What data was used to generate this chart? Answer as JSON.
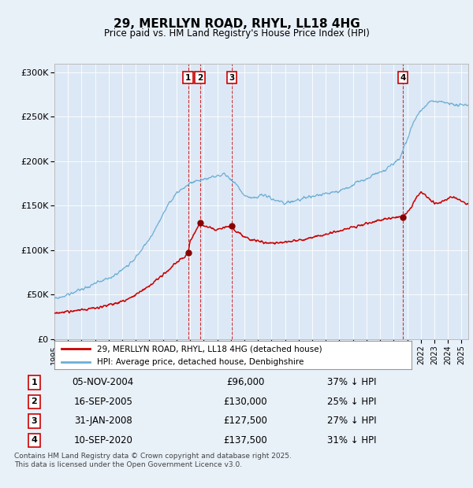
{
  "title": "29, MERLLYN ROAD, RHYL, LL18 4HG",
  "subtitle": "Price paid vs. HM Land Registry's House Price Index (HPI)",
  "background_color": "#e8f0f8",
  "plot_bg_color": "#dce8f5",
  "ylim": [
    0,
    310000
  ],
  "yticks": [
    0,
    50000,
    100000,
    150000,
    200000,
    250000,
    300000
  ],
  "ytick_labels": [
    "£0",
    "£50K",
    "£100K",
    "£150K",
    "£200K",
    "£250K",
    "£300K"
  ],
  "transactions": [
    {
      "num": 1,
      "date": "05-NOV-2004",
      "price": 96000,
      "pct": "37% ↓ HPI",
      "x_year": 2004.85
    },
    {
      "num": 2,
      "date": "16-SEP-2005",
      "price": 130000,
      "pct": "25% ↓ HPI",
      "x_year": 2005.72
    },
    {
      "num": 3,
      "date": "31-JAN-2008",
      "price": 127500,
      "pct": "27% ↓ HPI",
      "x_year": 2008.08
    },
    {
      "num": 4,
      "date": "10-SEP-2020",
      "price": 137500,
      "pct": "31% ↓ HPI",
      "x_year": 2020.69
    }
  ],
  "legend_entries": [
    {
      "label": "29, MERLLYN ROAD, RHYL, LL18 4HG (detached house)",
      "color": "#cc0000"
    },
    {
      "label": "HPI: Average price, detached house, Denbighshire",
      "color": "#6baed6"
    }
  ],
  "footer": "Contains HM Land Registry data © Crown copyright and database right 2025.\nThis data is licensed under the Open Government Licence v3.0.",
  "xmin": 1995,
  "xmax": 2025.5
}
